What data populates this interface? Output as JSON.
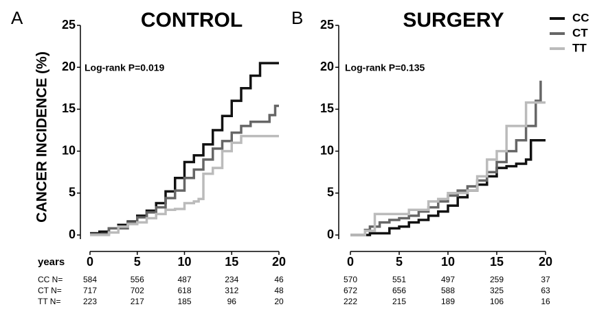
{
  "chart_data": [
    {
      "type": "line",
      "step": "post",
      "panel": "A",
      "title": "CONTROL",
      "annotation": "Log-rank P=0.019",
      "y_label": "CANCER INCIDENCE (%)",
      "xlim": [
        0,
        20
      ],
      "xticks": [
        0,
        5,
        10,
        15,
        20
      ],
      "ylim": [
        0,
        25
      ],
      "yticks": [
        0,
        5,
        10,
        15,
        20,
        25
      ],
      "series": [
        {
          "color": "#111111",
          "x": [
            0,
            1,
            2,
            3,
            4,
            5,
            6,
            7,
            8,
            9,
            10,
            11,
            12,
            13,
            14,
            15,
            16,
            17,
            18,
            20
          ],
          "values": [
            0.2,
            0.4,
            0.8,
            1.2,
            1.6,
            2.3,
            2.9,
            3.8,
            5.2,
            6.8,
            8.7,
            9.5,
            10.8,
            12.5,
            14.2,
            16,
            17.5,
            19,
            20.5,
            20.5
          ]
        },
        {
          "color": "#666666",
          "x": [
            0,
            2,
            4,
            5,
            6,
            7,
            8,
            9,
            10,
            11,
            12,
            13,
            14,
            15,
            16,
            17,
            19,
            19.6,
            20
          ],
          "values": [
            0.1,
            0.8,
            1.5,
            2.1,
            2.7,
            3.3,
            4.4,
            5.3,
            6.8,
            7.8,
            9,
            10.3,
            11.2,
            12.2,
            13,
            13.5,
            14.3,
            15.4,
            15.4
          ]
        },
        {
          "color": "#bbbbbb",
          "x": [
            0,
            2,
            3,
            4,
            5,
            6,
            7,
            8,
            9,
            10,
            11,
            11.5,
            12,
            13,
            14,
            15,
            16,
            20
          ],
          "values": [
            0,
            0.3,
            1,
            1.3,
            1.5,
            2,
            2.5,
            3,
            3.1,
            3.8,
            4,
            4.3,
            7.3,
            8,
            10,
            11,
            11.8,
            11.8
          ]
        }
      ],
      "risk_table": {
        "header": "years",
        "row_labels": [
          "CC N=",
          "CT N=",
          "TT N="
        ],
        "rows": [
          [
            584,
            556,
            487,
            234,
            46
          ],
          [
            717,
            702,
            618,
            312,
            48
          ],
          [
            223,
            217,
            185,
            96,
            20
          ]
        ]
      }
    },
    {
      "type": "line",
      "step": "post",
      "panel": "B",
      "title": "SURGERY",
      "annotation": "Log-rank P=0.135",
      "xlim": [
        0,
        20
      ],
      "xticks": [
        0,
        5,
        10,
        15,
        20
      ],
      "ylim": [
        0,
        25
      ],
      "yticks": [
        0,
        5,
        10,
        15,
        20,
        25
      ],
      "series": [
        {
          "name": "CC",
          "color": "#111111",
          "x": [
            0,
            2,
            4,
            5,
            6,
            7,
            8,
            9,
            10,
            11,
            12,
            13,
            14,
            15,
            16,
            17,
            18,
            18.5,
            20
          ],
          "values": [
            0,
            0.2,
            0.8,
            1,
            1.5,
            1.8,
            2.3,
            2.8,
            3.5,
            4.5,
            5.3,
            6,
            7,
            8,
            8.2,
            8.5,
            9,
            11.3,
            11.3
          ]
        },
        {
          "name": "CT",
          "color": "#666666",
          "x": [
            0,
            1.5,
            2,
            3,
            4,
            5,
            6,
            7,
            8,
            9,
            10,
            11,
            12,
            13,
            14,
            15,
            16,
            17,
            18,
            19,
            19.5
          ],
          "values": [
            0,
            0.6,
            1,
            1.5,
            1.8,
            2,
            2.3,
            2.8,
            3.3,
            4,
            4.7,
            5.3,
            5.8,
            6.5,
            7.5,
            8.7,
            10,
            11.3,
            13,
            16,
            18.4
          ]
        },
        {
          "name": "TT",
          "color": "#bbbbbb",
          "x": [
            0,
            1.5,
            2.5,
            5,
            6,
            8,
            9,
            10,
            12,
            13,
            14,
            15,
            16,
            17,
            18,
            20
          ],
          "values": [
            0,
            0.5,
            2.5,
            2.5,
            3,
            4,
            4.3,
            5,
            5.3,
            7,
            9,
            10,
            13,
            13,
            15.8,
            15.8
          ]
        }
      ],
      "risk_table": {
        "rows": [
          [
            570,
            551,
            497,
            259,
            37
          ],
          [
            672,
            656,
            588,
            325,
            63
          ],
          [
            222,
            215,
            189,
            106,
            16
          ]
        ]
      }
    }
  ]
}
